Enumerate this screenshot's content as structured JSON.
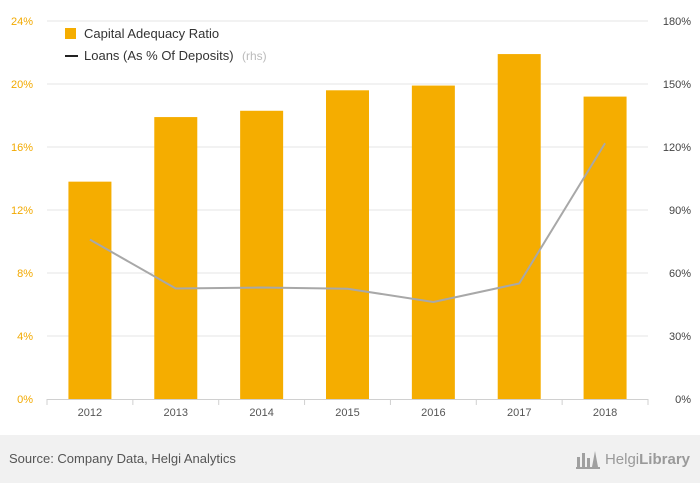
{
  "chart_data": {
    "type": "bar",
    "categories": [
      "2012",
      "2013",
      "2014",
      "2015",
      "2016",
      "2017",
      "2018"
    ],
    "series": [
      {
        "name": "Capital Adequacy Ratio",
        "type": "bar",
        "axis": "left",
        "color": "#f5ad00",
        "values": [
          13.8,
          17.9,
          18.3,
          19.6,
          19.9,
          21.9,
          19.2
        ]
      },
      {
        "name": "Loans (As % Of Deposits)",
        "type": "line",
        "axis": "right",
        "color": "#a8a8a8",
        "values": [
          75.9,
          52.6,
          53.1,
          52.5,
          46.2,
          55.0,
          121.8
        ]
      }
    ],
    "y_left": {
      "lim": [
        0,
        24
      ],
      "ticks": [
        "0%",
        "4%",
        "8%",
        "12%",
        "16%",
        "20%",
        "24%"
      ]
    },
    "y_right": {
      "lim": [
        0,
        180
      ],
      "ticks": [
        "0%",
        "30%",
        "60%",
        "90%",
        "120%",
        "150%",
        "180%"
      ]
    },
    "grid": true,
    "legend": {
      "position": "top-left",
      "bar_label": "Capital Adequacy Ratio",
      "line_label": "Loans (As % Of Deposits)",
      "line_note": "(rhs)"
    }
  },
  "footer": {
    "source": "Source: Company Data, Helgi Analytics",
    "brand_light": "Helgi",
    "brand_bold": "Library"
  },
  "icons": {
    "brand": "helgi-library-logo-icon"
  }
}
